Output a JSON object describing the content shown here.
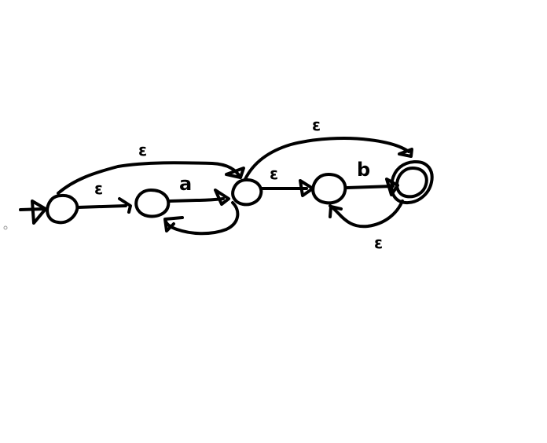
{
  "diagram": {
    "type": "nfa",
    "states": [
      {
        "id": "s0",
        "start": true,
        "accepting": false
      },
      {
        "id": "s1",
        "start": false,
        "accepting": false
      },
      {
        "id": "s2",
        "start": false,
        "accepting": false
      },
      {
        "id": "s3",
        "start": false,
        "accepting": false
      },
      {
        "id": "s4",
        "start": false,
        "accepting": true
      }
    ],
    "transitions": [
      {
        "from": "s0",
        "to": "s1",
        "label": "ε"
      },
      {
        "from": "s0",
        "to": "s2",
        "label": "ε"
      },
      {
        "from": "s1",
        "to": "s2",
        "label": "a"
      },
      {
        "from": "s2",
        "to": "s1",
        "label": ""
      },
      {
        "from": "s2",
        "to": "s3",
        "label": "ε"
      },
      {
        "from": "s2",
        "to": "s4",
        "label": "ε"
      },
      {
        "from": "s3",
        "to": "s4",
        "label": "b"
      },
      {
        "from": "s4",
        "to": "s3",
        "label": "ε"
      }
    ]
  },
  "labels": {
    "eps_s0_s1": "ε",
    "eps_s0_s2": "ε",
    "a_s1_s2": "a",
    "eps_s2_s3": "ε",
    "eps_s2_s4": "ε",
    "b_s3_s4": "b",
    "eps_s4_s3": "ε"
  }
}
